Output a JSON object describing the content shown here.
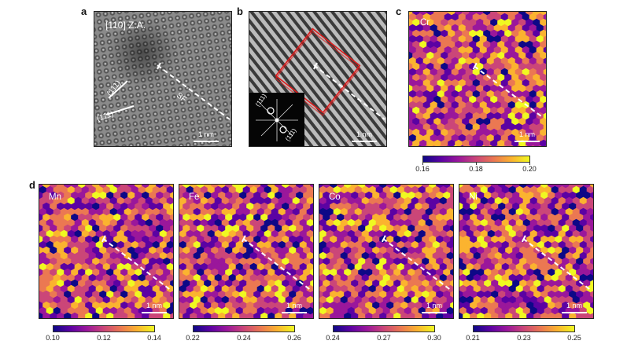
{
  "panels": {
    "a": {
      "letter": "a",
      "zone_axis": "[110] Z.A.",
      "plane1": "(111)",
      "plane2": "(111)",
      "sf": "SF",
      "scale": "1 nm"
    },
    "b": {
      "letter": "b",
      "fft1": "(111)",
      "fft2": "(111)",
      "scale": "1 nm"
    },
    "c": {
      "letter": "c",
      "element": "Cr",
      "scale": "1 nm",
      "ticks": [
        "0.16",
        "0.18",
        "0.20"
      ]
    },
    "d": {
      "letter": "d"
    }
  },
  "maps": [
    {
      "element": "Mn",
      "scale": "1 nm",
      "ticks": [
        "0.10",
        "0.12",
        "0.14"
      ]
    },
    {
      "element": "Fe",
      "scale": "1 nm",
      "ticks": [
        "0.22",
        "0.24",
        "0.26"
      ]
    },
    {
      "element": "Co",
      "scale": "1 nm",
      "ticks": [
        "0.24",
        "0.27",
        "0.30"
      ]
    },
    {
      "element": "Ni",
      "scale": "1 nm",
      "ticks": [
        "0.21",
        "0.23",
        "0.25"
      ]
    }
  ],
  "colormap": [
    "#0d0887",
    "#5b02a3",
    "#9a179b",
    "#cb4678",
    "#eb7852",
    "#fbb32f",
    "#f0f921"
  ]
}
